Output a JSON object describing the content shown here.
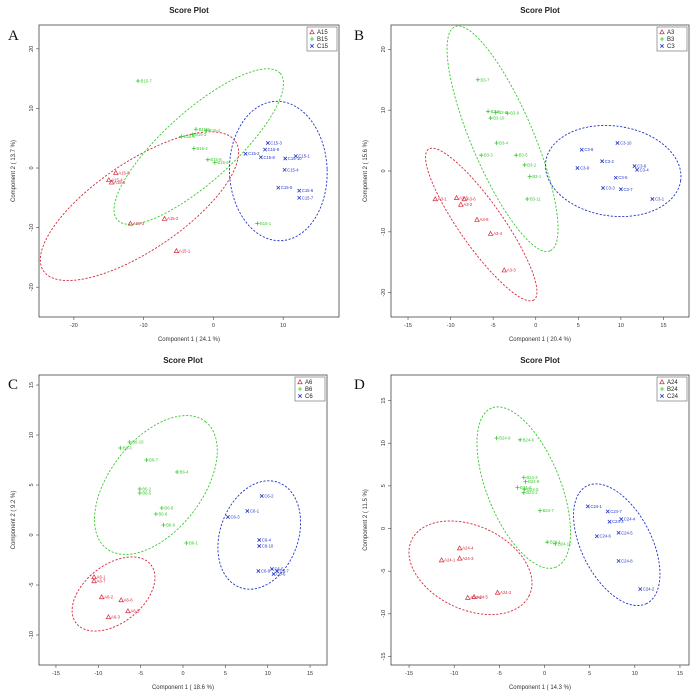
{
  "colors": {
    "A": "#d62839",
    "B": "#39c92f",
    "C": "#2335c8"
  },
  "chart_data": [
    {
      "type": "scatter",
      "panel": "A",
      "title": "Score Plot",
      "xlabel": "Component 1 ( 24.1 %)",
      "ylabel": "Component 2 ( 13.7 %)",
      "xlim": [
        -25,
        18
      ],
      "ylim": [
        -25,
        24
      ],
      "xticks": [
        -20,
        -10,
        0,
        10
      ],
      "yticks": [
        -20,
        -10,
        0,
        10,
        20
      ],
      "series": [
        {
          "name": "A15",
          "group": "A",
          "points": [
            {
              "x": -14,
              "y": -0.8,
              "label": "A15-8"
            },
            {
              "x": -15,
              "y": -2,
              "label": "A15-4"
            },
            {
              "x": -14.6,
              "y": -2.4,
              "label": "A15-6"
            },
            {
              "x": -11.9,
              "y": -9.3,
              "label": "A15-3"
            },
            {
              "x": -7,
              "y": -8.5,
              "label": "A15-2"
            },
            {
              "x": -5.3,
              "y": -13.9,
              "label": "A15-1"
            }
          ]
        },
        {
          "name": "B15",
          "group": "B",
          "points": [
            {
              "x": -10.8,
              "y": 14.6,
              "label": "B15-7"
            },
            {
              "x": -2.5,
              "y": 6.5,
              "label": "B15-5"
            },
            {
              "x": -1,
              "y": 6.3,
              "label": "B15-4"
            },
            {
              "x": -3,
              "y": 5.6,
              "label": "B15-3"
            },
            {
              "x": -4.6,
              "y": 5.3,
              "label": "B15-6"
            },
            {
              "x": -2.8,
              "y": 3.3,
              "label": "B15-2"
            },
            {
              "x": -0.8,
              "y": 1.4,
              "label": "B15-8"
            },
            {
              "x": 0.2,
              "y": 0.9,
              "label": "B15-9"
            },
            {
              "x": 6.3,
              "y": -9.3,
              "label": "B15-1"
            }
          ]
        },
        {
          "name": "C15",
          "group": "C",
          "points": [
            {
              "x": 7.8,
              "y": 4.2,
              "label": "C15-3"
            },
            {
              "x": 7.4,
              "y": 3.1,
              "label": "C15-9"
            },
            {
              "x": 4.6,
              "y": 2.4,
              "label": "C15-2"
            },
            {
              "x": 6.8,
              "y": 1.8,
              "label": "C15-8"
            },
            {
              "x": 11.8,
              "y": 2.0,
              "label": "C15-1"
            },
            {
              "x": 10.3,
              "y": 1.6,
              "label": "C15-10"
            },
            {
              "x": 10.2,
              "y": -0.3,
              "label": "C15-4"
            },
            {
              "x": 9.3,
              "y": -3.3,
              "label": "C15-5"
            },
            {
              "x": 12.3,
              "y": -3.8,
              "label": "C15-6"
            },
            {
              "x": 12.3,
              "y": -5.0,
              "label": "C15-7"
            }
          ]
        }
      ],
      "ellipses": [
        {
          "group": "A",
          "cx": -10.6,
          "cy": -6.4,
          "rx": 16.6,
          "ry": 7.4,
          "angle": 34
        },
        {
          "group": "B",
          "cx": -2.1,
          "cy": 3.6,
          "rx": 15.7,
          "ry": 5.9,
          "angle": 42
        },
        {
          "group": "C",
          "cx": 9.3,
          "cy": -0.5,
          "rx": 7.0,
          "ry": 11.7,
          "angle": 2
        }
      ],
      "legend": [
        "A15",
        "B15",
        "C15"
      ],
      "legend_position": "top-right"
    },
    {
      "type": "scatter",
      "panel": "B",
      "title": "Score Plot",
      "xlabel": "Component 1 ( 20.4 %)",
      "ylabel": "Component 2 ( 15.6 %)",
      "xlim": [
        -17,
        18
      ],
      "ylim": [
        -24,
        24
      ],
      "xticks": [
        -15,
        -10,
        -5,
        0,
        5,
        10,
        15
      ],
      "yticks": [
        -20,
        -10,
        0,
        10,
        20
      ],
      "series": [
        {
          "name": "A3",
          "group": "A",
          "points": [
            {
              "x": -11.8,
              "y": -4.6,
              "label": "A3-1"
            },
            {
              "x": -9.3,
              "y": -4.4,
              "label": "A3-5"
            },
            {
              "x": -8.4,
              "y": -4.6,
              "label": "A3-6"
            },
            {
              "x": -8.8,
              "y": -5.5,
              "label": "A3-2"
            },
            {
              "x": -6.9,
              "y": -8.0,
              "label": "A3-8"
            },
            {
              "x": -5.3,
              "y": -10.3,
              "label": "A3-4"
            },
            {
              "x": -3.7,
              "y": -16.3,
              "label": "A3-3"
            }
          ]
        },
        {
          "name": "B3",
          "group": "B",
          "points": [
            {
              "x": -6.8,
              "y": 15.0,
              "label": "B3-7"
            },
            {
              "x": -5.6,
              "y": 9.8,
              "label": "B3-8"
            },
            {
              "x": -4.7,
              "y": 9.6,
              "label": "B3-6"
            },
            {
              "x": -3.3,
              "y": 9.5,
              "label": "B3-9"
            },
            {
              "x": -5.3,
              "y": 8.7,
              "label": "B3-10"
            },
            {
              "x": -4.6,
              "y": 4.6,
              "label": "B3-4"
            },
            {
              "x": -6.4,
              "y": 2.6,
              "label": "B3-3"
            },
            {
              "x": -2.3,
              "y": 2.6,
              "label": "B3-5"
            },
            {
              "x": -1.3,
              "y": 1.0,
              "label": "B3-2"
            },
            {
              "x": -0.7,
              "y": -0.9,
              "label": "B3-1"
            },
            {
              "x": -1.0,
              "y": -4.6,
              "label": "B3-11"
            }
          ]
        },
        {
          "name": "C3",
          "group": "C",
          "points": [
            {
              "x": 5.4,
              "y": 3.5,
              "label": "C3-8"
            },
            {
              "x": 9.6,
              "y": 4.6,
              "label": "C3-10"
            },
            {
              "x": 7.8,
              "y": 1.6,
              "label": "C3-2"
            },
            {
              "x": 4.9,
              "y": 0.5,
              "label": "C3-9"
            },
            {
              "x": 11.6,
              "y": 0.8,
              "label": "C3-6"
            },
            {
              "x": 11.9,
              "y": 0.2,
              "label": "C3-4"
            },
            {
              "x": 9.4,
              "y": -1.1,
              "label": "C3-5"
            },
            {
              "x": 7.9,
              "y": -2.8,
              "label": "C3-3"
            },
            {
              "x": 10.0,
              "y": -3.0,
              "label": "C3-7"
            },
            {
              "x": 13.7,
              "y": -4.6,
              "label": "C3-1"
            }
          ]
        }
      ],
      "ellipses": [
        {
          "group": "A",
          "cx": -6.4,
          "cy": -8.8,
          "rx": 10.8,
          "ry": 3.6,
          "angle": -55
        },
        {
          "group": "B",
          "cx": -3.9,
          "cy": 5.3,
          "rx": 14.3,
          "ry": 5.1,
          "angle": -67
        },
        {
          "group": "C",
          "cx": 9.1,
          "cy": 0.0,
          "rx": 8.0,
          "ry": 7.4,
          "angle": -8
        }
      ],
      "legend": [
        "A3",
        "B3",
        "C3"
      ],
      "legend_position": "top-right"
    },
    {
      "type": "scatter",
      "panel": "C",
      "title": "Score Plot",
      "xlabel": "Component 1 ( 18.6 %)",
      "ylabel": "Component 2 ( 9.2 %)",
      "xlim": [
        -17,
        17
      ],
      "ylim": [
        -13,
        16
      ],
      "xticks": [
        -15,
        -10,
        -5,
        0,
        5,
        10,
        15
      ],
      "yticks": [
        -10,
        -5,
        0,
        5,
        10,
        15
      ],
      "series": [
        {
          "name": "A6",
          "group": "A",
          "points": [
            {
              "x": -10.5,
              "y": -4.2,
              "label": "A6-1"
            },
            {
              "x": -10.5,
              "y": -4.6,
              "label": "A6-7"
            },
            {
              "x": -9.6,
              "y": -6.2,
              "label": "A6-2"
            },
            {
              "x": -7.3,
              "y": -6.5,
              "label": "A6-6"
            },
            {
              "x": -6.5,
              "y": -7.6,
              "label": "A6-5"
            },
            {
              "x": -8.8,
              "y": -8.2,
              "label": "A6-3"
            }
          ]
        },
        {
          "name": "B6",
          "group": "B",
          "points": [
            {
              "x": -6.3,
              "y": 9.3,
              "label": "B6-10"
            },
            {
              "x": -7.4,
              "y": 8.7,
              "label": "B6-3"
            },
            {
              "x": -4.3,
              "y": 7.5,
              "label": "B6-7"
            },
            {
              "x": -0.7,
              "y": 6.3,
              "label": "B6-4"
            },
            {
              "x": -5.1,
              "y": 4.6,
              "label": "B6-2"
            },
            {
              "x": -5.1,
              "y": 4.2,
              "label": "B6-5"
            },
            {
              "x": -2.5,
              "y": 2.7,
              "label": "B6-8"
            },
            {
              "x": -3.2,
              "y": 2.1,
              "label": "B6-6"
            },
            {
              "x": -2.3,
              "y": 1.0,
              "label": "B6-9"
            },
            {
              "x": 0.4,
              "y": -0.8,
              "label": "B6-1"
            }
          ]
        },
        {
          "name": "C6",
          "group": "C",
          "points": [
            {
              "x": 9.3,
              "y": 3.9,
              "label": "C6-2"
            },
            {
              "x": 7.6,
              "y": 2.4,
              "label": "C6-1"
            },
            {
              "x": 5.3,
              "y": 1.8,
              "label": "C6-3"
            },
            {
              "x": 9.0,
              "y": -0.5,
              "label": "C6-4"
            },
            {
              "x": 9.0,
              "y": -1.1,
              "label": "C6-10"
            },
            {
              "x": 8.9,
              "y": -3.6,
              "label": "C6-9"
            },
            {
              "x": 10.5,
              "y": -3.4,
              "label": "C6-5"
            },
            {
              "x": 11.1,
              "y": -3.6,
              "label": "C6-7"
            },
            {
              "x": 10.7,
              "y": -3.9,
              "label": "C6-6"
            }
          ]
        }
      ],
      "ellipses": [
        {
          "group": "A",
          "cx": -8.2,
          "cy": -5.9,
          "rx": 5.6,
          "ry": 2.9,
          "angle": 38
        },
        {
          "group": "B",
          "cx": -3.2,
          "cy": 5.0,
          "rx": 9.5,
          "ry": 4.6,
          "angle": 52
        },
        {
          "group": "C",
          "cx": 9.0,
          "cy": 0.0,
          "rx": 6.6,
          "ry": 3.9,
          "angle": 70
        }
      ],
      "legend": [
        "A6",
        "B6",
        "C6"
      ],
      "legend_position": "top-right"
    },
    {
      "type": "scatter",
      "panel": "D",
      "title": "Score Plot",
      "xlabel": "Component 1 ( 14.3 %)",
      "ylabel": "Component 2 ( 11.5 %)",
      "xlim": [
        -17,
        16
      ],
      "ylim": [
        -16,
        18
      ],
      "xticks": [
        -15,
        -10,
        -5,
        0,
        5,
        10,
        15
      ],
      "yticks": [
        -15,
        -10,
        -5,
        0,
        5,
        10,
        15
      ],
      "series": [
        {
          "name": "A24",
          "group": "A",
          "points": [
            {
              "x": -9.4,
              "y": -2.3,
              "label": "A24-4"
            },
            {
              "x": -11.4,
              "y": -3.7,
              "label": "A24-1"
            },
            {
              "x": -9.4,
              "y": -3.5,
              "label": "A24-3"
            },
            {
              "x": -5.2,
              "y": -7.5,
              "label": "A24-2"
            },
            {
              "x": -8.5,
              "y": -8.1,
              "label": "A24-6"
            },
            {
              "x": -7.8,
              "y": -8.0,
              "label": "A24-5"
            }
          ]
        },
        {
          "name": "B24",
          "group": "B",
          "points": [
            {
              "x": -5.3,
              "y": 10.6,
              "label": "B24-9"
            },
            {
              "x": -2.7,
              "y": 10.4,
              "label": "B24-6"
            },
            {
              "x": -2.3,
              "y": 6.0,
              "label": "B24-3"
            },
            {
              "x": -2.1,
              "y": 5.5,
              "label": "B24-8"
            },
            {
              "x": -3.0,
              "y": 4.8,
              "label": "B24-4"
            },
            {
              "x": -2.2,
              "y": 4.6,
              "label": "B24-5"
            },
            {
              "x": -2.3,
              "y": 4.2,
              "label": "B24-2"
            },
            {
              "x": -0.5,
              "y": 2.1,
              "label": "B24-7"
            },
            {
              "x": 0.3,
              "y": -1.6,
              "label": "B24-1"
            },
            {
              "x": 1.2,
              "y": -1.8,
              "label": "B24-10"
            }
          ]
        },
        {
          "name": "C24",
          "group": "C",
          "points": [
            {
              "x": 4.8,
              "y": 2.6,
              "label": "C24-1"
            },
            {
              "x": 7.0,
              "y": 2.0,
              "label": "C24-7"
            },
            {
              "x": 8.5,
              "y": 1.1,
              "label": "C24-4"
            },
            {
              "x": 7.2,
              "y": 0.8,
              "label": "C24-3"
            },
            {
              "x": 8.2,
              "y": -0.5,
              "label": "C24-5"
            },
            {
              "x": 5.8,
              "y": -0.9,
              "label": "C24-6"
            },
            {
              "x": 8.2,
              "y": -3.8,
              "label": "C24-8"
            },
            {
              "x": 10.6,
              "y": -7.1,
              "label": "C24-2"
            }
          ]
        }
      ],
      "ellipses": [
        {
          "group": "A",
          "cx": -8.2,
          "cy": -4.6,
          "rx": 7.2,
          "ry": 4.9,
          "angle": -25
        },
        {
          "group": "B",
          "cx": -2.3,
          "cy": 4.8,
          "rx": 9.5,
          "ry": 4.3,
          "angle": -68
        },
        {
          "group": "C",
          "cx": 8.0,
          "cy": -1.9,
          "rx": 7.3,
          "ry": 4.1,
          "angle": -63
        }
      ],
      "legend": [
        "A24",
        "B24",
        "C24"
      ],
      "legend_position": "top-right"
    }
  ]
}
